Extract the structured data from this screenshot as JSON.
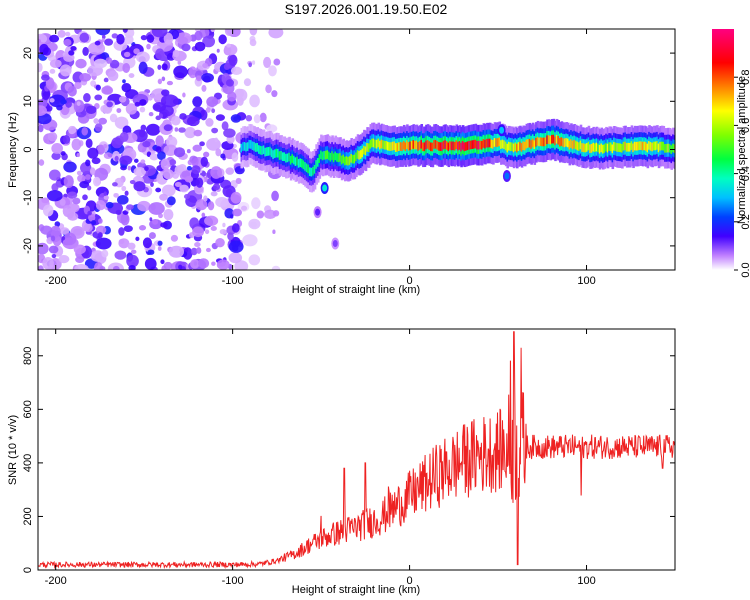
{
  "title": "S197.2026.001.19.50.E02",
  "chart_data": [
    {
      "type": "heatmap",
      "name": "spectrogram",
      "xlabel": "Height of straight line (km)",
      "ylabel": "Frequency (Hz)",
      "xlim": [
        -210,
        150
      ],
      "ylim": [
        -25,
        25
      ],
      "xticks": [
        -200,
        -100,
        0,
        100
      ],
      "yticks": [
        -20,
        -10,
        0,
        10,
        20
      ],
      "colorbar": {
        "label": "Normalized spectral amplitude",
        "range": [
          0,
          1
        ],
        "ticks": [
          0.0,
          0.2,
          0.4,
          0.6,
          0.8
        ],
        "tick_labels": [
          "0.0",
          "0.2",
          "0.4",
          "0.6",
          "0.8"
        ],
        "stops": [
          {
            "v": 0.0,
            "color": "#ffffff"
          },
          {
            "v": 0.06,
            "color": "#c080ff"
          },
          {
            "v": 0.14,
            "color": "#4000ff"
          },
          {
            "v": 0.22,
            "color": "#0040ff"
          },
          {
            "v": 0.3,
            "color": "#00c0ff"
          },
          {
            "v": 0.38,
            "color": "#00ffc0"
          },
          {
            "v": 0.46,
            "color": "#00ff40"
          },
          {
            "v": 0.56,
            "color": "#80ff00"
          },
          {
            "v": 0.66,
            "color": "#ffff00"
          },
          {
            "v": 0.76,
            "color": "#ff8000"
          },
          {
            "v": 0.86,
            "color": "#ff0000"
          },
          {
            "v": 1.0,
            "color": "#ff0080"
          }
        ]
      },
      "noise_region": {
        "x_start": -210,
        "x_end": -95,
        "fade_end": -80,
        "typical_amplitude": 0.12
      },
      "signal_track": [
        {
          "x": -95,
          "f": 0.5,
          "a": 0.3
        },
        {
          "x": -90,
          "f": 1.0,
          "a": 0.35
        },
        {
          "x": -80,
          "f": -0.5,
          "a": 0.4
        },
        {
          "x": -70,
          "f": -1.5,
          "a": 0.42
        },
        {
          "x": -60,
          "f": -3.0,
          "a": 0.45
        },
        {
          "x": -55,
          "f": -5.0,
          "a": 0.4
        },
        {
          "x": -50,
          "f": -1.0,
          "a": 0.48
        },
        {
          "x": -42,
          "f": -1.5,
          "a": 0.5
        },
        {
          "x": -35,
          "f": -2.5,
          "a": 0.55
        },
        {
          "x": -28,
          "f": -1.0,
          "a": 0.6
        },
        {
          "x": -20,
          "f": 1.5,
          "a": 0.62
        },
        {
          "x": -10,
          "f": 0.5,
          "a": 0.7
        },
        {
          "x": 0,
          "f": 0.8,
          "a": 0.8
        },
        {
          "x": 10,
          "f": 0.8,
          "a": 0.85
        },
        {
          "x": 20,
          "f": 0.8,
          "a": 0.88
        },
        {
          "x": 30,
          "f": 0.8,
          "a": 0.9
        },
        {
          "x": 40,
          "f": 0.9,
          "a": 0.9
        },
        {
          "x": 50,
          "f": 1.5,
          "a": 0.75
        },
        {
          "x": 55,
          "f": 0.5,
          "a": 0.6
        },
        {
          "x": 60,
          "f": 0.5,
          "a": 0.7
        },
        {
          "x": 70,
          "f": 1.2,
          "a": 0.75
        },
        {
          "x": 80,
          "f": 2.2,
          "a": 0.8
        },
        {
          "x": 90,
          "f": 1.2,
          "a": 0.7
        },
        {
          "x": 100,
          "f": 0.5,
          "a": 0.65
        },
        {
          "x": 110,
          "f": 0.3,
          "a": 0.6
        },
        {
          "x": 120,
          "f": 0.5,
          "a": 0.65
        },
        {
          "x": 130,
          "f": 0.6,
          "a": 0.7
        },
        {
          "x": 140,
          "f": 0.6,
          "a": 0.65
        },
        {
          "x": 150,
          "f": 0.0,
          "a": 0.55
        }
      ],
      "features": [
        {
          "x": -48,
          "f": -8.0,
          "a": 0.35
        },
        {
          "x": -52,
          "f": -13.0,
          "a": 0.12
        },
        {
          "x": -42,
          "f": -19.5,
          "a": 0.1
        },
        {
          "x": 55,
          "f": -5.5,
          "a": 0.25
        },
        {
          "x": 52,
          "f": 4.0,
          "a": 0.3
        }
      ]
    },
    {
      "type": "line",
      "name": "snr",
      "xlabel": "Height of straight line (km)",
      "ylabel": "SNR (10 * v/v)",
      "xlim": [
        -210,
        150
      ],
      "ylim": [
        0,
        900
      ],
      "xticks": [
        -200,
        -100,
        0,
        100
      ],
      "yticks": [
        0,
        200,
        400,
        600,
        800
      ],
      "color": "#ee2222",
      "trend": [
        {
          "x": -210,
          "y": 20
        },
        {
          "x": -100,
          "y": 20
        },
        {
          "x": -85,
          "y": 22
        },
        {
          "x": -75,
          "y": 35
        },
        {
          "x": -65,
          "y": 60
        },
        {
          "x": -55,
          "y": 100
        },
        {
          "x": -45,
          "y": 130
        },
        {
          "x": -35,
          "y": 150
        },
        {
          "x": -25,
          "y": 170
        },
        {
          "x": -15,
          "y": 200
        },
        {
          "x": -5,
          "y": 250
        },
        {
          "x": 5,
          "y": 300
        },
        {
          "x": 15,
          "y": 350
        },
        {
          "x": 25,
          "y": 390
        },
        {
          "x": 35,
          "y": 420
        },
        {
          "x": 45,
          "y": 440
        },
        {
          "x": 55,
          "y": 450
        },
        {
          "x": 65,
          "y": 460
        },
        {
          "x": 80,
          "y": 460
        },
        {
          "x": 100,
          "y": 460
        },
        {
          "x": 120,
          "y": 460
        },
        {
          "x": 150,
          "y": 460
        }
      ],
      "spikes": [
        {
          "x": -50,
          "y": 200
        },
        {
          "x": -37,
          "y": 380
        },
        {
          "x": -25,
          "y": 400
        },
        {
          "x": -12,
          "y": 310
        },
        {
          "x": 30,
          "y": 500
        },
        {
          "x": 57,
          "y": 780
        },
        {
          "x": 59,
          "y": 890
        },
        {
          "x": 61,
          "y": 20
        },
        {
          "x": 63,
          "y": 830
        },
        {
          "x": 97,
          "y": 280
        },
        {
          "x": 143,
          "y": 380
        }
      ]
    }
  ]
}
